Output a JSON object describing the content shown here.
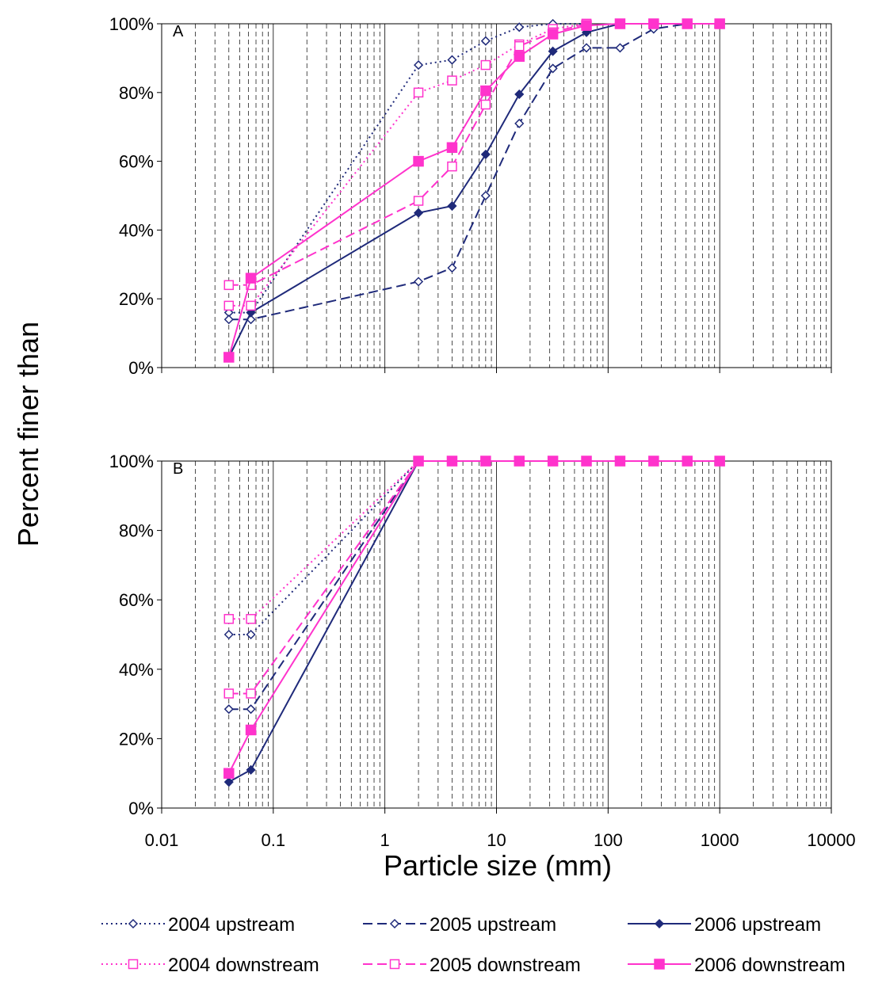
{
  "chart_data": {
    "type": "line",
    "xlabel": "Particle size (mm)",
    "ylabel": "Percent finer than",
    "x_scale": "log",
    "xlim": [
      0.01,
      10000
    ],
    "ylim": [
      0,
      100
    ],
    "x_ticks": [
      "0.01",
      "0.1",
      "1",
      "10",
      "100",
      "1000",
      "10000"
    ],
    "y_ticks": [
      "0%",
      "20%",
      "40%",
      "60%",
      "80%",
      "100%"
    ],
    "grid": "vertical lines at log decades (solid) and minor steps (dashed)",
    "legend_position": "bottom",
    "colors": {
      "upstream": "#1f2a7a",
      "downstream": "#ff33cc"
    },
    "legend": [
      {
        "label": "2004 upstream",
        "color": "#1f2a7a",
        "dash": "dot",
        "marker": "diamond-open"
      },
      {
        "label": "2005 upstream",
        "color": "#1f2a7a",
        "dash": "dash",
        "marker": "diamond-open"
      },
      {
        "label": "2006 upstream",
        "color": "#1f2a7a",
        "dash": "solid",
        "marker": "diamond-filled"
      },
      {
        "label": "2004 downstream",
        "color": "#ff33cc",
        "dash": "dot",
        "marker": "square-open"
      },
      {
        "label": "2005 downstream",
        "color": "#ff33cc",
        "dash": "dash",
        "marker": "square-open"
      },
      {
        "label": "2006 downstream",
        "color": "#ff33cc",
        "dash": "solid",
        "marker": "square-filled"
      }
    ],
    "panels": [
      {
        "label": "A",
        "series": [
          {
            "x": [
              0.04,
              0.063,
              2,
              4,
              8,
              16,
              32,
              64
            ],
            "y": [
              16,
              16,
              88,
              89.5,
              95,
              99,
              100,
              100
            ]
          },
          {
            "x": [
              0.04,
              0.063,
              2,
              4,
              8,
              16,
              32,
              64,
              128,
              256,
              512
            ],
            "y": [
              14,
              14,
              25,
              29,
              50,
              71,
              87,
              93,
              93,
              98.5,
              100
            ]
          },
          {
            "x": [
              0.04,
              0.063,
              2,
              4,
              8,
              16,
              32,
              64,
              128,
              256,
              512,
              1000
            ],
            "y": [
              3,
              16,
              45,
              47,
              62,
              79.5,
              92,
              97.5,
              100,
              100,
              100,
              100
            ]
          },
          {
            "x": [
              0.04,
              0.063,
              2,
              4,
              8,
              16,
              32,
              64
            ],
            "y": [
              18,
              18,
              80,
              83.5,
              88,
              94,
              98.5,
              100
            ]
          },
          {
            "x": [
              0.04,
              0.063,
              2,
              4,
              8,
              16,
              32,
              64
            ],
            "y": [
              24,
              24,
              48.5,
              58.5,
              76.5,
              93.5,
              97.5,
              100
            ]
          },
          {
            "x": [
              0.04,
              0.063,
              2,
              4,
              8,
              16,
              32,
              64,
              128,
              256,
              512,
              1000
            ],
            "y": [
              3,
              26,
              60,
              64,
              80.5,
              90.5,
              97,
              99.5,
              100,
              100,
              100,
              100
            ]
          }
        ]
      },
      {
        "label": "B",
        "series": [
          {
            "x": [
              0.04,
              0.063,
              2,
              4,
              8,
              16,
              32,
              64,
              128,
              256,
              512,
              1000
            ],
            "y": [
              50,
              50,
              100,
              100,
              100,
              100,
              100,
              100,
              100,
              100,
              100,
              100
            ]
          },
          {
            "x": [
              0.04,
              0.063,
              2,
              4,
              8,
              16,
              32,
              64,
              128,
              256,
              512,
              1000
            ],
            "y": [
              28.5,
              28.5,
              100,
              100,
              100,
              100,
              100,
              100,
              100,
              100,
              100,
              100
            ]
          },
          {
            "x": [
              0.04,
              0.063,
              2,
              4,
              8,
              16,
              32,
              64,
              128,
              256,
              512,
              1000
            ],
            "y": [
              7.5,
              11,
              100,
              100,
              100,
              100,
              100,
              100,
              100,
              100,
              100,
              100
            ]
          },
          {
            "x": [
              0.04,
              0.063,
              2,
              4,
              8,
              16,
              32,
              64,
              128,
              256,
              512,
              1000
            ],
            "y": [
              54.5,
              54.5,
              100,
              100,
              100,
              100,
              100,
              100,
              100,
              100,
              100,
              100
            ]
          },
          {
            "x": [
              0.04,
              0.063,
              2,
              4,
              8,
              16,
              32,
              64,
              128,
              256,
              512,
              1000
            ],
            "y": [
              33,
              33,
              100,
              100,
              100,
              100,
              100,
              100,
              100,
              100,
              100,
              100
            ]
          },
          {
            "x": [
              0.04,
              0.063,
              2,
              4,
              8,
              16,
              32,
              64,
              128,
              256,
              512,
              1000
            ],
            "y": [
              10,
              22.5,
              100,
              100,
              100,
              100,
              100,
              100,
              100,
              100,
              100,
              100
            ]
          }
        ]
      }
    ]
  }
}
